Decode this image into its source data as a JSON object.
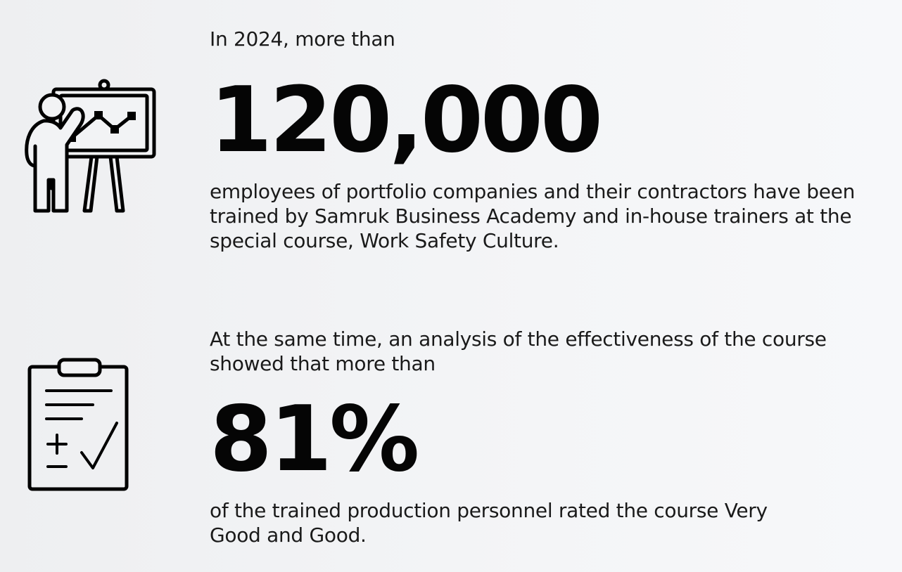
{
  "block_training": {
    "intro": "In 2024, more than",
    "number": "120,000",
    "text": "employees of portfolio companies and their contractors have been trained by Samruk Business Academy and in-house trainers at the special course, Work Safety Culture.",
    "icon": "presentation-board-icon"
  },
  "block_effectiveness": {
    "intro": "At the same time, an analysis of the effectiveness of the course showed that more than",
    "number": "81%",
    "text": "of the trained production personnel rated the course Very Good and Good.",
    "icon": "clipboard-checklist-icon"
  },
  "colors": {
    "text": "#111111",
    "background": "#f2f3f5"
  }
}
